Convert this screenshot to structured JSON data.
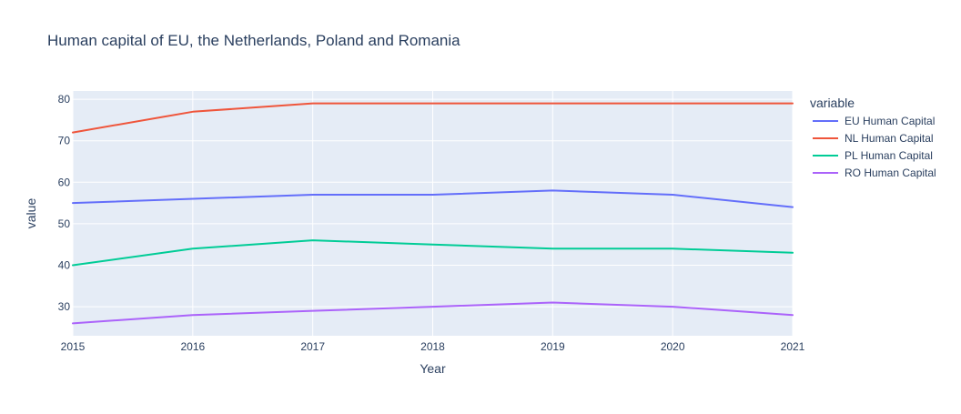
{
  "chart_data": {
    "type": "line",
    "title": "Human capital of EU, the Netherlands, Poland and Romania",
    "xlabel": "Year",
    "ylabel": "value",
    "x": [
      2015,
      2016,
      2017,
      2018,
      2019,
      2020,
      2021
    ],
    "xlim": [
      2015,
      2021
    ],
    "ylim": [
      23,
      82
    ],
    "yticks": [
      30,
      40,
      50,
      60,
      70,
      80
    ],
    "grid": true,
    "legend": {
      "title": "variable",
      "placement": "right"
    },
    "series": [
      {
        "name": "EU Human Capital",
        "color": "#636efa",
        "values": [
          55,
          56,
          57,
          57,
          58,
          57,
          54
        ]
      },
      {
        "name": "NL Human Capital",
        "color": "#ef553b",
        "values": [
          72,
          77,
          79,
          79,
          79,
          79,
          79
        ]
      },
      {
        "name": "PL Human Capital",
        "color": "#00cc96",
        "values": [
          40,
          44,
          46,
          45,
          44,
          44,
          43
        ]
      },
      {
        "name": "RO Human Capital",
        "color": "#ab63fa",
        "values": [
          26,
          28,
          29,
          30,
          31,
          30,
          28
        ]
      }
    ]
  }
}
